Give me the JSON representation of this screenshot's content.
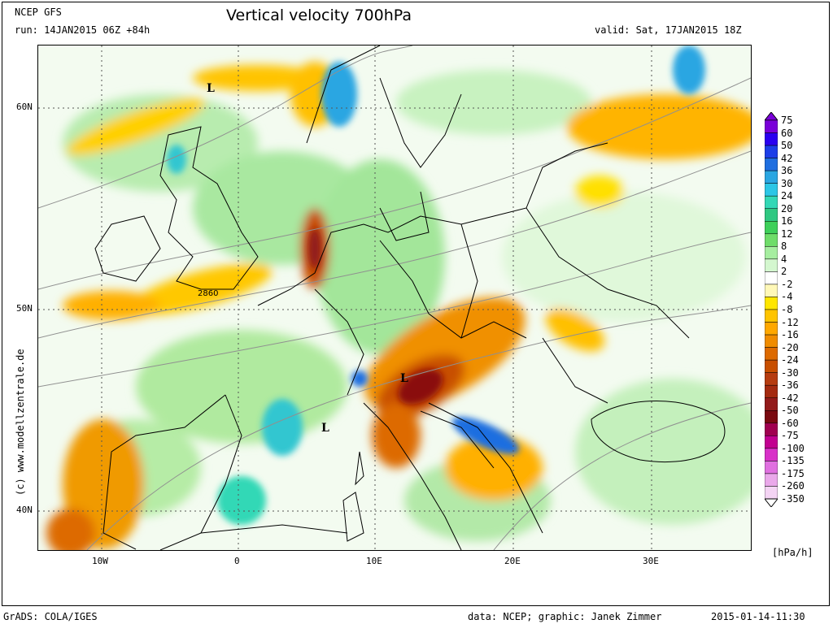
{
  "header": {
    "model": "NCEP GFS",
    "run": "run: 14JAN2015 06Z +84h",
    "title": "Vertical velocity 700hPa",
    "valid": "valid: Sat, 17JAN2015 18Z"
  },
  "axes": {
    "lat_labels": [
      "60N",
      "50N",
      "40N"
    ],
    "lon_labels": [
      "10W",
      "0",
      "10E",
      "20E",
      "30E"
    ]
  },
  "map_labels": {
    "lows": [
      "L",
      "L",
      "L"
    ],
    "contour_value": "2860"
  },
  "credit": "(c) www.modellzentrale.de",
  "footer": {
    "left": "GrADS: COLA/IGES",
    "center": "data: NCEP; graphic: Janek Zimmer",
    "right": "2015-01-14-11:30"
  },
  "colorbar": {
    "unit": "[hPa/h]",
    "labels": [
      "75",
      "60",
      "50",
      "42",
      "36",
      "30",
      "24",
      "20",
      "16",
      "12",
      "8",
      "4",
      "2",
      "-2",
      "-4",
      "-8",
      "-12",
      "-16",
      "-20",
      "-24",
      "-30",
      "-36",
      "-42",
      "-50",
      "-60",
      "-75",
      "-100",
      "-135",
      "-175",
      "-260",
      "-350"
    ],
    "colors": [
      "#7a00d9",
      "#2a00f0",
      "#1c3ee8",
      "#1f6ee0",
      "#2aa6e2",
      "#2cc6e6",
      "#33d8b6",
      "#2fc882",
      "#3ed05a",
      "#6fdd6a",
      "#a6eea0",
      "#d4f7cf",
      "#ffffff",
      "#fff8b8",
      "#ffe600",
      "#ffc400",
      "#ffa800",
      "#f08c00",
      "#dd6a00",
      "#c84f00",
      "#b63c10",
      "#a42a10",
      "#921a1a",
      "#7a0a10",
      "#a00050",
      "#c20090",
      "#d830c8",
      "#e070e0",
      "#eaa8ea",
      "#f4d4f4"
    ]
  }
}
